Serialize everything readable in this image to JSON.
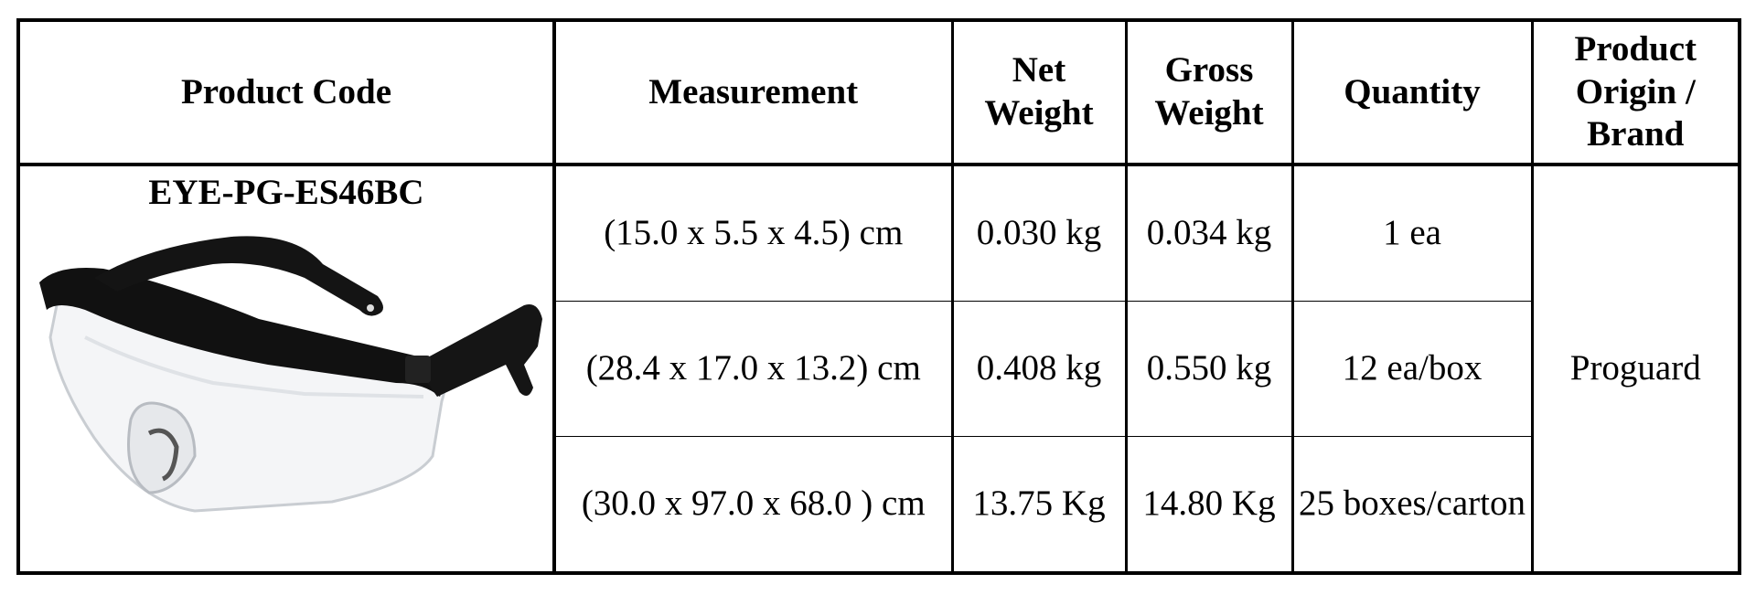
{
  "table": {
    "headers": {
      "product_code": "Product Code",
      "measurement": "Measurement",
      "net_weight": "Net Weight",
      "gross_weight": "Gross Weight",
      "quantity": "Quantity",
      "origin_brand": "Product Origin / Brand"
    },
    "product": {
      "code": "EYE-PG-ES46BC",
      "image_icon": "safety-glasses-icon",
      "origin_brand": "Proguard"
    },
    "rows": [
      {
        "measurement": "(15.0 x 5.5 x 4.5) cm",
        "net_weight": "0.030 kg",
        "gross_weight": "0.034 kg",
        "quantity": "1 ea"
      },
      {
        "measurement": "(28.4 x 17.0 x 13.2) cm",
        "net_weight": "0.408 kg",
        "gross_weight": "0.550 kg",
        "quantity": "12 ea/box"
      },
      {
        "measurement": "(30.0 x 97.0 x 68.0 ) cm",
        "net_weight": "13.75 Kg",
        "gross_weight": "14.80 Kg",
        "quantity": "25 boxes/carton"
      }
    ]
  }
}
